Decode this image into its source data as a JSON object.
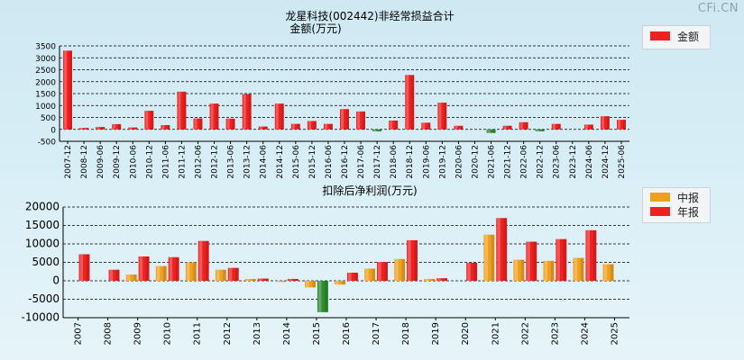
{
  "brand": "CFi.CN",
  "chart_data": [
    {
      "type": "bar",
      "title": "龙星科技(002442)非经常损益合计",
      "subtitle": "金额(万元)",
      "categories": [
        "2007-12",
        "2008-12",
        "2009-06",
        "2009-12",
        "2010-06",
        "2010-12",
        "2011-06",
        "2011-12",
        "2012-06",
        "2012-12",
        "2013-06",
        "2013-12",
        "2014-06",
        "2014-12",
        "2015-06",
        "2015-12",
        "2016-06",
        "2016-12",
        "2017-06",
        "2017-12",
        "2018-06",
        "2018-12",
        "2019-06",
        "2019-12",
        "2020-06",
        "2020-12",
        "2021-06",
        "2021-12",
        "2022-06",
        "2022-12",
        "2023-06",
        "2023-12",
        "2024-06",
        "2024-12",
        "2025-06"
      ],
      "series": [
        {
          "name": "金额",
          "color": "#ee2020",
          "negative_color": "#2e8b2e",
          "values": [
            3300,
            60,
            100,
            220,
            80,
            780,
            180,
            1580,
            460,
            1080,
            450,
            1480,
            120,
            1080,
            230,
            350,
            230,
            850,
            750,
            -80,
            370,
            2280,
            280,
            1120,
            150,
            0,
            -150,
            150,
            300,
            -80,
            230,
            0,
            200,
            550,
            400
          ]
        }
      ],
      "ylim": [
        -500,
        3500
      ],
      "yticks": [
        -500,
        0,
        500,
        1000,
        1500,
        2000,
        2500,
        3000,
        3500
      ],
      "grid": true,
      "legend": "top-right"
    },
    {
      "type": "bar",
      "title": "扣除后净利润(万元)",
      "categories": [
        "2007",
        "2008",
        "2009",
        "2010",
        "2011",
        "2012",
        "2013",
        "2014",
        "2015",
        "2016",
        "2017",
        "2018",
        "2019",
        "2020",
        "2021",
        "2022",
        "2023",
        "2024",
        "2025"
      ],
      "series": [
        {
          "name": "中报",
          "color": "#f0a020",
          "values": [
            null,
            null,
            1700,
            4000,
            5000,
            3000,
            500,
            -300,
            -1800,
            -1000,
            3300,
            5900,
            500,
            null,
            12500,
            5700,
            5400,
            6200,
            4500
          ]
        },
        {
          "name": "年报",
          "color": "#ee2020",
          "negative_color": "#2e8b2e",
          "values": [
            7200,
            3000,
            6600,
            6400,
            10800,
            3500,
            600,
            500,
            -8500,
            2200,
            5100,
            11000,
            700,
            4900,
            17000,
            10600,
            11300,
            13700,
            null
          ]
        }
      ],
      "ylim": [
        -10000,
        20000
      ],
      "yticks": [
        -10000,
        -5000,
        0,
        5000,
        10000,
        15000,
        20000
      ],
      "grid": true,
      "legend": "top-right"
    }
  ]
}
